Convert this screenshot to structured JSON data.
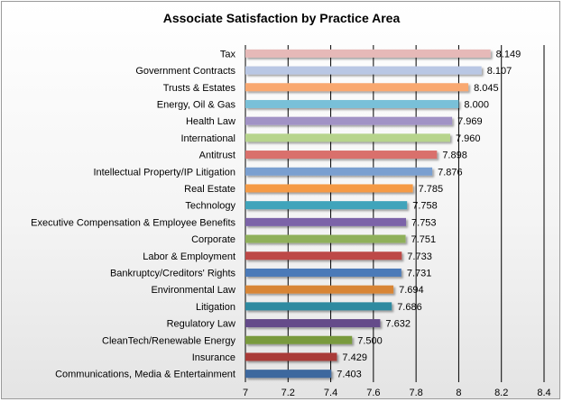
{
  "chart_data": {
    "type": "bar",
    "orientation": "horizontal",
    "title": "Associate Satisfaction by Practice Area",
    "categories": [
      "Tax",
      "Government Contracts",
      "Trusts & Estates",
      "Energy, Oil & Gas",
      "Health Law",
      "International",
      "Antitrust",
      "Intellectual Property/IP Litigation",
      "Real Estate",
      "Technology",
      "Executive Compensation & Employee Benefits",
      "Corporate",
      "Labor & Employment",
      "Bankruptcy/Creditors' Rights",
      "Environmental Law",
      "Litigation",
      "Regulatory Law",
      "CleanTech/Renewable Energy",
      "Insurance",
      "Communications, Media & Entertainment"
    ],
    "values": [
      8.149,
      8.107,
      8.045,
      8.0,
      7.969,
      7.96,
      7.898,
      7.876,
      7.785,
      7.758,
      7.753,
      7.751,
      7.733,
      7.731,
      7.694,
      7.686,
      7.632,
      7.5,
      7.429,
      7.403
    ],
    "value_labels": [
      "8.149",
      "8.107",
      "8.045",
      "8.000",
      "7.969",
      "7.960",
      "7.898",
      "7.876",
      "7.785",
      "7.758",
      "7.753",
      "7.751",
      "7.733",
      "7.731",
      "7.694",
      "7.686",
      "7.632",
      "7.500",
      "7.429",
      "7.403"
    ],
    "colors": [
      "#e6b9b8",
      "#b9c7e4",
      "#f9a870",
      "#79c0d8",
      "#a192c5",
      "#b7d48c",
      "#d9706c",
      "#7a9fd0",
      "#f59a45",
      "#3fa4bb",
      "#7c64a8",
      "#8fb05a",
      "#bd4a46",
      "#4c7ab8",
      "#d88535",
      "#2d8aa0",
      "#654b8a",
      "#799a3e",
      "#a93b38",
      "#3e689e"
    ],
    "xlim": [
      7,
      8.4
    ],
    "xticks": [
      "7",
      "7.2",
      "7.4",
      "7.6",
      "7.8",
      "8",
      "8.2",
      "8.4"
    ],
    "xtick_values": [
      7,
      7.2,
      7.4,
      7.6,
      7.8,
      8,
      8.2,
      8.4
    ],
    "grid": "vertical",
    "legend": "none"
  }
}
